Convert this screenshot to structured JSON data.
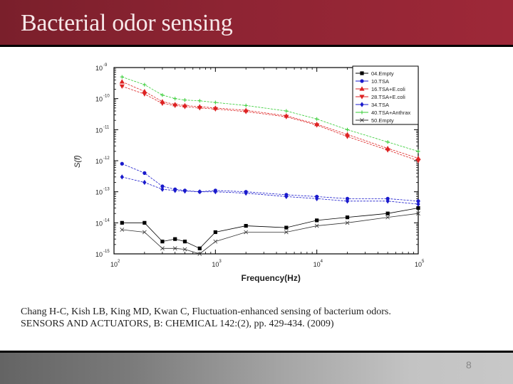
{
  "slide": {
    "title": "Bacterial odor sensing",
    "citation_line1": "Chang H-C, Kish LB, King MD, Kwan C, Fluctuation-enhanced sensing of bacterium odors.",
    "citation_line2": "SENSORS AND ACTUATORS, B: CHEMICAL 142:(2), pp. 429-434. (2009)",
    "page_number": "8",
    "colors": {
      "title_bar": "#8e2433",
      "title_text": "#f6e7e8",
      "footer_dark": "#646464",
      "footer_light": "#c8c8c8"
    }
  },
  "chart_data": {
    "type": "line",
    "title": "",
    "xlabel": "Frequency(Hz)",
    "ylabel": "S(f)",
    "xscale": "log",
    "yscale": "log",
    "xlim": [
      100,
      100000
    ],
    "ylim": [
      1e-15,
      1e-09
    ],
    "x_ticks": [
      "10^2",
      "10^3",
      "10^4",
      "10^5"
    ],
    "y_ticks": [
      "10^-9",
      "10^-10",
      "10^-11",
      "10^-12",
      "10^-13",
      "10^-14",
      "10^-15"
    ],
    "grid": false,
    "legend_position": "top-right",
    "x": [
      120,
      200,
      300,
      400,
      500,
      700,
      1000,
      2000,
      5000,
      10000,
      20000,
      50000,
      100000
    ],
    "series": [
      {
        "name": "04.Empty",
        "color": "#000000",
        "marker": "square",
        "values": [
          1e-14,
          1e-14,
          2.5e-15,
          3e-15,
          2.5e-15,
          1.5e-15,
          5e-15,
          8e-15,
          7e-15,
          1.2e-14,
          1.5e-14,
          2e-14,
          3e-14
        ]
      },
      {
        "name": "10.TSA",
        "color": "#1a1acc",
        "marker": "circle",
        "values": [
          8e-13,
          4e-13,
          1.5e-13,
          1.2e-13,
          1.1e-13,
          1e-13,
          1.1e-13,
          1e-13,
          8e-14,
          7e-14,
          6e-14,
          6e-14,
          5e-14
        ]
      },
      {
        "name": "16.TSA+E.coli",
        "color": "#dd2222",
        "marker": "triangle-up",
        "values": [
          3.5e-10,
          1.7e-10,
          8e-11,
          6.5e-11,
          6e-11,
          5.5e-11,
          5e-11,
          4.2e-11,
          2.8e-11,
          1.5e-11,
          7e-12,
          2.5e-12,
          1.2e-12
        ]
      },
      {
        "name": "28.TSA+E.coli",
        "color": "#dd2222",
        "marker": "triangle-down",
        "values": [
          2.5e-10,
          1.4e-10,
          7e-11,
          6e-11,
          5.5e-11,
          5e-11,
          4.6e-11,
          3.8e-11,
          2.6e-11,
          1.4e-11,
          6e-12,
          2.2e-12,
          1e-12
        ]
      },
      {
        "name": "34.TSA",
        "color": "#1a1acc",
        "marker": "diamond",
        "values": [
          3e-13,
          2e-13,
          1.2e-13,
          1.1e-13,
          1.05e-13,
          1e-13,
          1e-13,
          9e-14,
          7e-14,
          6e-14,
          5e-14,
          5e-14,
          4e-14
        ]
      },
      {
        "name": "40.TSA+Anthrax",
        "color": "#33cc33",
        "marker": "plus",
        "values": [
          5e-10,
          2.8e-10,
          1.3e-10,
          1e-10,
          9e-11,
          8.5e-11,
          7.5e-11,
          6e-11,
          4e-11,
          2.2e-11,
          1e-11,
          4e-12,
          2e-12
        ]
      },
      {
        "name": "50.Empty",
        "color": "#333333",
        "marker": "x",
        "values": [
          6e-15,
          5e-15,
          1.5e-15,
          1.5e-15,
          1.4e-15,
          1e-15,
          2.5e-15,
          5e-15,
          5e-15,
          8e-15,
          1e-14,
          1.5e-14,
          2e-14
        ]
      }
    ]
  }
}
